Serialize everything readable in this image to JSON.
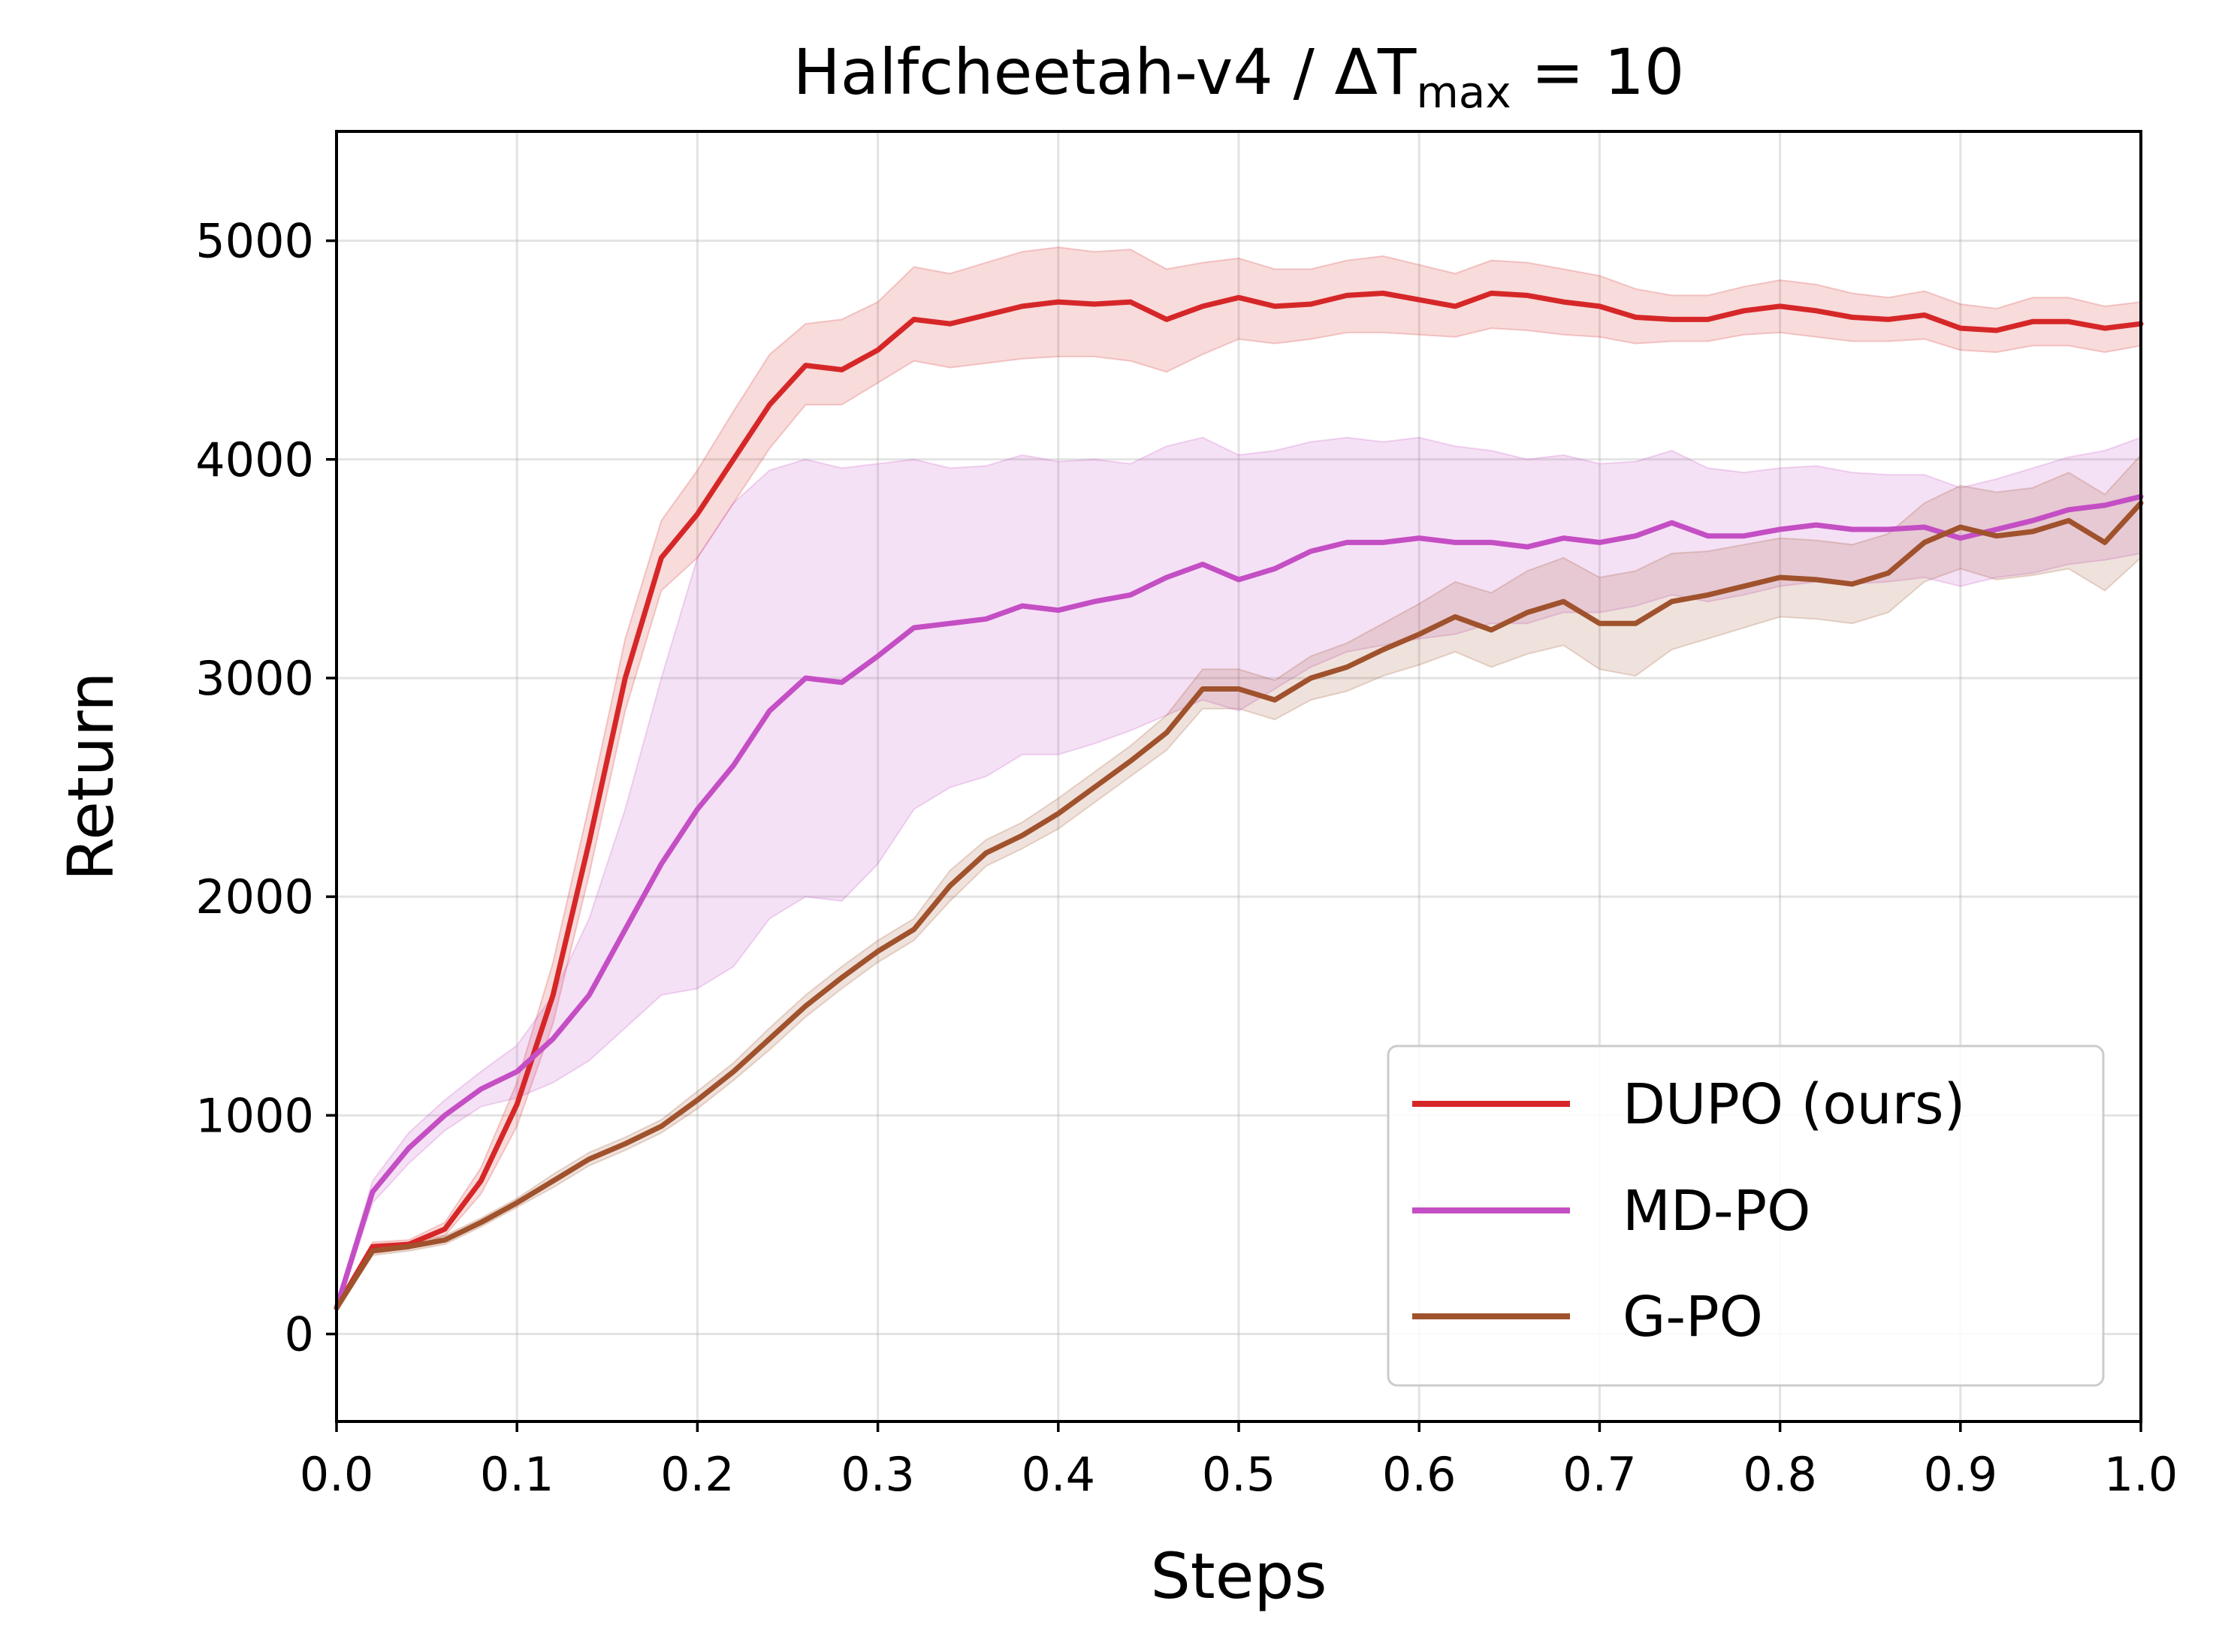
{
  "chart_data": {
    "type": "line",
    "title": {
      "main": "Halfcheetah-v4 / ΔT",
      "subscript": "max",
      "suffix": " = 10"
    },
    "xlabel": "Steps",
    "ylabel": "Return",
    "xlim": [
      0.0,
      1.0
    ],
    "ylim": [
      -400,
      5500
    ],
    "xticks": [
      0.0,
      0.1,
      0.2,
      0.3,
      0.4,
      0.5,
      0.6,
      0.7,
      0.8,
      0.9,
      1.0
    ],
    "xtick_labels": [
      "0.0",
      "0.1",
      "0.2",
      "0.3",
      "0.4",
      "0.5",
      "0.6",
      "0.7",
      "0.8",
      "0.9",
      "1.0"
    ],
    "yticks": [
      0,
      1000,
      2000,
      3000,
      4000,
      5000
    ],
    "ytick_labels": [
      "0",
      "1000",
      "2000",
      "3000",
      "4000",
      "5000"
    ],
    "grid": true,
    "legend_position": "lower-right",
    "series": [
      {
        "name": "DUPO (ours)",
        "color": "#d62728",
        "x": [
          0.0,
          0.02,
          0.04,
          0.06,
          0.08,
          0.1,
          0.12,
          0.14,
          0.16,
          0.18,
          0.2,
          0.22,
          0.24,
          0.26,
          0.28,
          0.3,
          0.32,
          0.34,
          0.36,
          0.38,
          0.4,
          0.42,
          0.44,
          0.46,
          0.48,
          0.5,
          0.52,
          0.54,
          0.56,
          0.58,
          0.6,
          0.62,
          0.64,
          0.66,
          0.68,
          0.7,
          0.72,
          0.74,
          0.76,
          0.78,
          0.8,
          0.82,
          0.84,
          0.86,
          0.88,
          0.9,
          0.92,
          0.94,
          0.96,
          0.98,
          1.0
        ],
        "y": [
          120,
          400,
          410,
          480,
          700,
          1050,
          1550,
          2250,
          3000,
          3550,
          3750,
          4000,
          4250,
          4430,
          4410,
          4500,
          4640,
          4620,
          4660,
          4700,
          4720,
          4710,
          4720,
          4640,
          4700,
          4740,
          4700,
          4710,
          4750,
          4760,
          4730,
          4700,
          4760,
          4750,
          4720,
          4700,
          4650,
          4640,
          4640,
          4680,
          4700,
          4680,
          4650,
          4640,
          4660,
          4600,
          4590,
          4630,
          4630,
          4600,
          4620
        ],
        "lower": [
          100,
          380,
          390,
          450,
          640,
          950,
          1420,
          2100,
          2850,
          3400,
          3550,
          3800,
          4050,
          4250,
          4250,
          4350,
          4450,
          4420,
          4440,
          4460,
          4470,
          4470,
          4450,
          4400,
          4480,
          4550,
          4530,
          4550,
          4580,
          4580,
          4570,
          4560,
          4600,
          4590,
          4570,
          4560,
          4530,
          4540,
          4540,
          4570,
          4580,
          4560,
          4540,
          4540,
          4550,
          4500,
          4490,
          4520,
          4520,
          4490,
          4520
        ],
        "upper": [
          140,
          420,
          430,
          510,
          760,
          1150,
          1700,
          2420,
          3180,
          3720,
          3950,
          4220,
          4480,
          4620,
          4640,
          4720,
          4880,
          4850,
          4900,
          4950,
          4970,
          4950,
          4960,
          4870,
          4900,
          4920,
          4870,
          4870,
          4910,
          4930,
          4890,
          4850,
          4910,
          4900,
          4870,
          4840,
          4780,
          4750,
          4750,
          4790,
          4820,
          4800,
          4760,
          4740,
          4770,
          4710,
          4690,
          4740,
          4740,
          4700,
          4720
        ]
      },
      {
        "name": "MD-PO",
        "color": "#c44ec4",
        "x": [
          0.0,
          0.02,
          0.04,
          0.06,
          0.08,
          0.1,
          0.12,
          0.14,
          0.16,
          0.18,
          0.2,
          0.22,
          0.24,
          0.26,
          0.28,
          0.3,
          0.32,
          0.34,
          0.36,
          0.38,
          0.4,
          0.42,
          0.44,
          0.46,
          0.48,
          0.5,
          0.52,
          0.54,
          0.56,
          0.58,
          0.6,
          0.62,
          0.64,
          0.66,
          0.68,
          0.7,
          0.72,
          0.74,
          0.76,
          0.78,
          0.8,
          0.82,
          0.84,
          0.86,
          0.88,
          0.9,
          0.92,
          0.94,
          0.96,
          0.98,
          1.0
        ],
        "y": [
          120,
          650,
          850,
          1000,
          1120,
          1200,
          1350,
          1550,
          1850,
          2150,
          2400,
          2600,
          2850,
          3000,
          2980,
          3100,
          3230,
          3250,
          3270,
          3330,
          3310,
          3350,
          3380,
          3460,
          3520,
          3450,
          3500,
          3580,
          3620,
          3620,
          3640,
          3620,
          3620,
          3600,
          3640,
          3620,
          3650,
          3710,
          3650,
          3650,
          3680,
          3700,
          3680,
          3680,
          3690,
          3640,
          3680,
          3720,
          3770,
          3790,
          3830
        ],
        "lower": [
          100,
          600,
          780,
          930,
          1040,
          1080,
          1150,
          1250,
          1400,
          1550,
          1580,
          1680,
          1900,
          2000,
          1980,
          2150,
          2400,
          2500,
          2550,
          2650,
          2650,
          2700,
          2760,
          2830,
          2900,
          2850,
          2950,
          3050,
          3120,
          3150,
          3180,
          3200,
          3250,
          3250,
          3300,
          3300,
          3330,
          3380,
          3350,
          3380,
          3420,
          3440,
          3430,
          3440,
          3460,
          3420,
          3460,
          3480,
          3520,
          3540,
          3570
        ],
        "upper": [
          140,
          700,
          920,
          1070,
          1200,
          1320,
          1550,
          1900,
          2400,
          3000,
          3550,
          3800,
          3950,
          4000,
          3960,
          3980,
          4000,
          3960,
          3970,
          4020,
          3990,
          4000,
          3980,
          4060,
          4100,
          4020,
          4040,
          4080,
          4100,
          4080,
          4100,
          4060,
          4040,
          4000,
          4020,
          3980,
          3990,
          4040,
          3960,
          3940,
          3960,
          3970,
          3940,
          3930,
          3930,
          3870,
          3910,
          3960,
          4010,
          4040,
          4100
        ]
      },
      {
        "name": "G-PO",
        "color": "#a0522d",
        "x": [
          0.0,
          0.02,
          0.04,
          0.06,
          0.08,
          0.1,
          0.12,
          0.14,
          0.16,
          0.18,
          0.2,
          0.22,
          0.24,
          0.26,
          0.28,
          0.3,
          0.32,
          0.34,
          0.36,
          0.38,
          0.4,
          0.42,
          0.44,
          0.46,
          0.48,
          0.5,
          0.52,
          0.54,
          0.56,
          0.58,
          0.6,
          0.62,
          0.64,
          0.66,
          0.68,
          0.7,
          0.72,
          0.74,
          0.76,
          0.78,
          0.8,
          0.82,
          0.84,
          0.86,
          0.88,
          0.9,
          0.92,
          0.94,
          0.96,
          0.98,
          1.0
        ],
        "y": [
          120,
          380,
          400,
          430,
          510,
          600,
          700,
          800,
          870,
          950,
          1070,
          1200,
          1350,
          1500,
          1630,
          1750,
          1850,
          2050,
          2200,
          2280,
          2380,
          2500,
          2620,
          2750,
          2950,
          2950,
          2900,
          3000,
          3050,
          3130,
          3200,
          3280,
          3220,
          3300,
          3350,
          3250,
          3250,
          3350,
          3380,
          3420,
          3460,
          3450,
          3430,
          3480,
          3620,
          3690,
          3650,
          3670,
          3720,
          3620,
          3800
        ],
        "lower": [
          100,
          360,
          380,
          410,
          490,
          580,
          670,
          770,
          840,
          920,
          1030,
          1160,
          1300,
          1450,
          1580,
          1700,
          1800,
          1980,
          2140,
          2220,
          2310,
          2430,
          2550,
          2670,
          2860,
          2860,
          2810,
          2900,
          2940,
          3010,
          3060,
          3120,
          3050,
          3110,
          3150,
          3040,
          3010,
          3130,
          3180,
          3230,
          3280,
          3270,
          3250,
          3300,
          3440,
          3500,
          3450,
          3470,
          3500,
          3400,
          3550
        ],
        "upper": [
          140,
          400,
          420,
          450,
          530,
          620,
          730,
          830,
          900,
          980,
          1110,
          1240,
          1400,
          1550,
          1680,
          1800,
          1900,
          2120,
          2260,
          2340,
          2450,
          2570,
          2690,
          2830,
          3040,
          3040,
          2990,
          3100,
          3160,
          3250,
          3340,
          3440,
          3390,
          3490,
          3550,
          3460,
          3490,
          3570,
          3580,
          3610,
          3640,
          3630,
          3610,
          3660,
          3800,
          3880,
          3850,
          3870,
          3940,
          3840,
          4020
        ]
      }
    ]
  }
}
